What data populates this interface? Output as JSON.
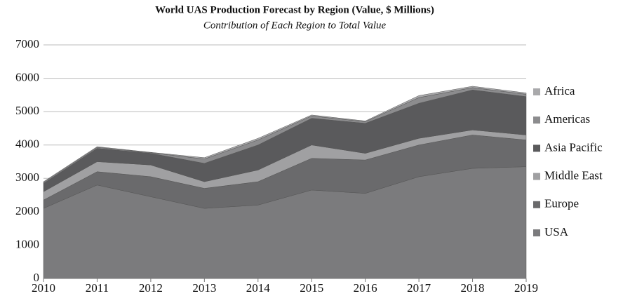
{
  "chart_data": {
    "type": "stacked-area",
    "title": "World UAS Production Forecast by Region (Value, $ Millions)",
    "subtitle": "Contribution of Each Region to Total Value",
    "x": [
      2010,
      2011,
      2012,
      2013,
      2014,
      2015,
      2016,
      2017,
      2018,
      2019
    ],
    "xlim": [
      2010,
      2019
    ],
    "ylim": [
      0,
      7000
    ],
    "yticks": [
      0,
      1000,
      2000,
      3000,
      4000,
      5000,
      6000,
      7000
    ],
    "grid": true,
    "legend": "right",
    "series": [
      {
        "name": "USA",
        "color": "#7b7b7d",
        "values": [
          2100,
          2800,
          2450,
          2100,
          2200,
          2650,
          2550,
          3050,
          3300,
          3350
        ]
      },
      {
        "name": "Europe",
        "color": "#6a6a6c",
        "values": [
          250,
          400,
          600,
          600,
          700,
          950,
          1000,
          950,
          1000,
          800
        ]
      },
      {
        "name": "Middle East",
        "color": "#a0a0a2",
        "values": [
          250,
          300,
          350,
          200,
          350,
          400,
          200,
          200,
          150,
          150
        ]
      },
      {
        "name": "Asia Pacific",
        "color": "#5a5a5c",
        "values": [
          250,
          400,
          350,
          550,
          750,
          800,
          900,
          1050,
          1200,
          1150
        ]
      },
      {
        "name": "Americas",
        "color": "#8c8c8e",
        "values": [
          30,
          30,
          20,
          130,
          150,
          70,
          50,
          170,
          70,
          70
        ]
      },
      {
        "name": "Africa",
        "color": "#a9a9ab",
        "values": [
          20,
          20,
          10,
          40,
          50,
          30,
          20,
          60,
          40,
          40
        ]
      }
    ]
  }
}
